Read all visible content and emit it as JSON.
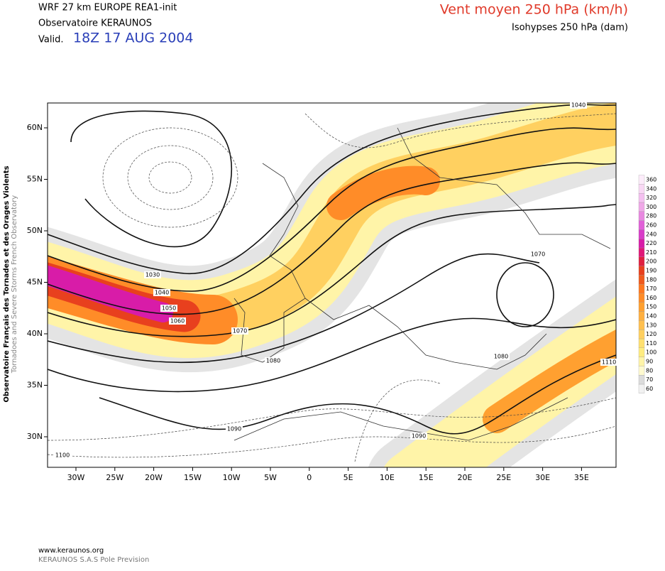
{
  "header": {
    "model": "WRF 27 km EUROPE   REA1-init",
    "observatory": "Observatoire KERAUNOS",
    "valid_prefix": "Valid.",
    "valid_time": "18Z 17 AUG 2004",
    "title": "Vent moyen 250 hPa (km/h)",
    "subtitle": "Isohypses 250 hPa (dam)"
  },
  "side_text": [
    "Observatoire Français des Tornades et des Orages Violents",
    "Tornadoes and Severe Storms French Observatory"
  ],
  "longitude_labels": [
    "30W",
    "25W",
    "20W",
    "15W",
    "10W",
    "5W",
    "0",
    "5E",
    "10E",
    "15E",
    "20E",
    "25E",
    "30E",
    "35E"
  ],
  "latitude_labels": [
    "60N",
    "55N",
    "50N",
    "45N",
    "40N",
    "35N",
    "30N"
  ],
  "contour_labels": [
    "1030",
    "1040",
    "1050",
    "1060",
    "1070",
    "1080",
    "1090",
    "1090",
    "1070",
    "1080",
    "1100",
    "1040",
    "1110"
  ],
  "wind_scale": {
    "levels": [
      60,
      70,
      80,
      90,
      100,
      110,
      120,
      130,
      140,
      150,
      160,
      170,
      180,
      190,
      200,
      210,
      220,
      240,
      260,
      280,
      300,
      320,
      340,
      360
    ],
    "colors": [
      "#f2f2f2",
      "#dcdcdc",
      "#fffad0",
      "#fff4a8",
      "#ffec80",
      "#ffe070",
      "#ffd060",
      "#ffc050",
      "#ffb040",
      "#ffa030",
      "#ff8c28",
      "#ff7820",
      "#f05a1e",
      "#e8401e",
      "#e02040",
      "#e01878",
      "#d81ca8",
      "#d83cc8",
      "#e060d8",
      "#e888e0",
      "#f0a8e8",
      "#f4c0f0",
      "#f8d8f4",
      "#fcecfa"
    ]
  },
  "footer": {
    "website": "www.keraunos.org",
    "company": "KERAUNOS S.A.S Pole Prevision"
  }
}
